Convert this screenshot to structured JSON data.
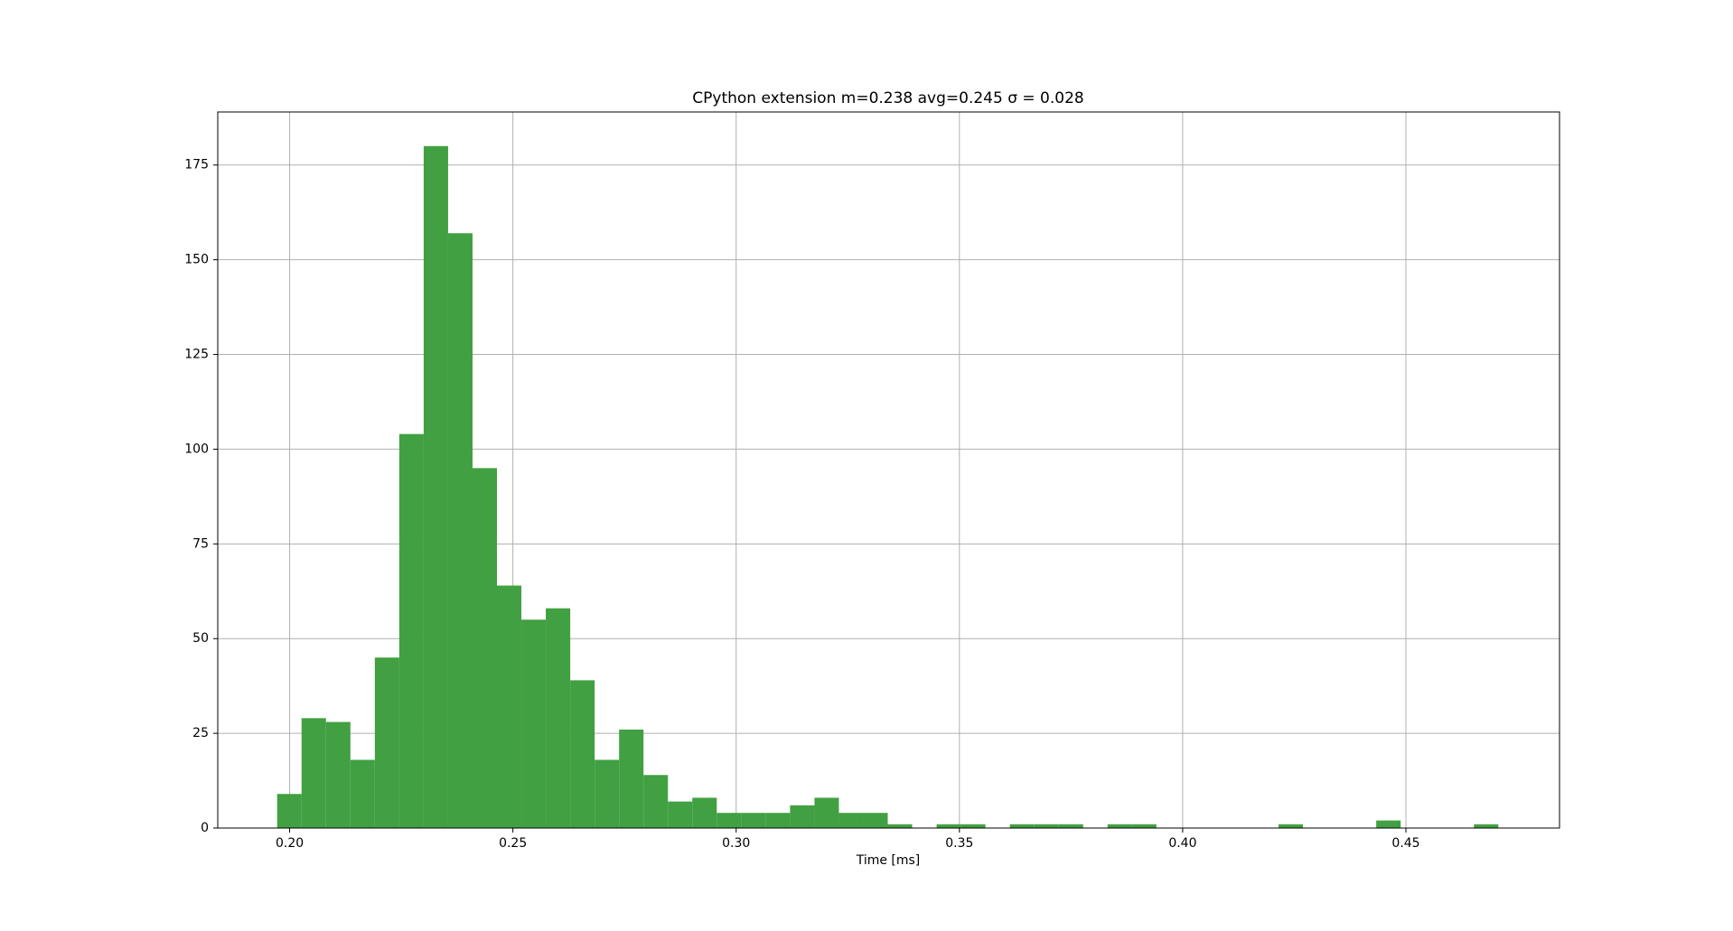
{
  "chart_data": {
    "type": "histogram",
    "title": "CPython extension m=0.238 avg=0.245 σ = 0.028",
    "x_label": "Time [ms]",
    "bins": [
      0.1972,
      0.20267,
      0.20814,
      0.21361,
      0.21908,
      0.22455,
      0.23002,
      0.23549,
      0.24096,
      0.24643,
      0.2519,
      0.25737,
      0.26284,
      0.26831,
      0.27378,
      0.27925,
      0.28472,
      0.29019,
      0.29566,
      0.30113,
      0.3066,
      0.31207,
      0.31754,
      0.32301,
      0.32848,
      0.33395,
      0.33942,
      0.34489,
      0.35036,
      0.35583,
      0.3613,
      0.36677,
      0.37224,
      0.37771,
      0.38318,
      0.38865,
      0.39412,
      0.39959,
      0.40506,
      0.41053,
      0.416,
      0.42147,
      0.42694,
      0.43241,
      0.43788,
      0.44335,
      0.44882,
      0.45429,
      0.45976,
      0.46523,
      0.4707
    ],
    "values": [
      9,
      29,
      28,
      18,
      45,
      104,
      180,
      157,
      95,
      64,
      55,
      58,
      39,
      18,
      26,
      14,
      7,
      8,
      4,
      4,
      4,
      6,
      8,
      4,
      4,
      1,
      0,
      1,
      1,
      0,
      1,
      1,
      1,
      0,
      1,
      1,
      0,
      0,
      0,
      0,
      0,
      1,
      0,
      0,
      0,
      2,
      0,
      0,
      0,
      1
    ],
    "color": "#41a041",
    "xlim": [
      0.1839,
      0.4844
    ],
    "ylim": [
      0,
      189
    ],
    "xticks": [
      {
        "value": 0.2,
        "label": "0.20"
      },
      {
        "value": 0.25,
        "label": "0.25"
      },
      {
        "value": 0.3,
        "label": "0.30"
      },
      {
        "value": 0.35,
        "label": "0.35"
      },
      {
        "value": 0.4,
        "label": "0.40"
      },
      {
        "value": 0.45,
        "label": "0.45"
      }
    ],
    "yticks": [
      0,
      25,
      50,
      75,
      100,
      125,
      150,
      175
    ],
    "grid": true
  }
}
